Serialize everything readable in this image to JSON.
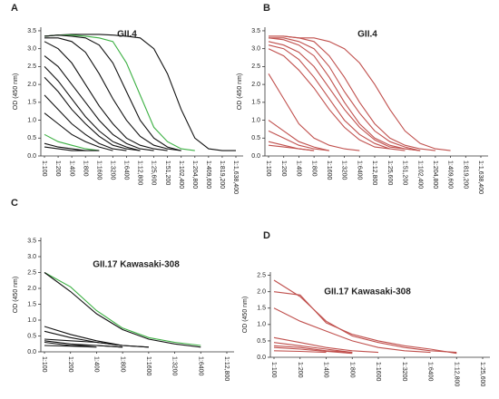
{
  "chart_data": [
    {
      "type": "line",
      "panel_label": "A",
      "title": "GII.4",
      "y_label": "OD (450 nm)",
      "categories": [
        "1:100",
        "1:200",
        "1:400",
        "1:800",
        "1:1600",
        "1:3200",
        "1:6400",
        "1:12,800",
        "1:25,600",
        "1:51,200",
        "1:102,400",
        "1:204,800",
        "1:409,600",
        "1:819,200",
        "1:1,638,400"
      ],
      "ylim": [
        0,
        3.6
      ],
      "yticks": [
        {
          "value": 0,
          "label": "0.0"
        },
        0.5,
        {
          "value": 1,
          "label": "1.0"
        },
        1.5,
        {
          "value": 2,
          "label": "2.0"
        },
        2.5,
        {
          "value": 3,
          "label": "3.0"
        },
        3.5
      ],
      "series": [
        {
          "color": "#111111",
          "values": [
            3.35,
            3.38,
            3.4,
            3.4,
            3.4,
            3.38,
            3.35,
            3.3,
            3.0,
            2.3,
            1.3,
            0.5,
            0.2,
            0.15,
            0.15
          ]
        },
        {
          "color": "#3cb043",
          "values": [
            3.35,
            3.38,
            3.38,
            3.35,
            3.3,
            3.2,
            2.6,
            1.7,
            0.8,
            0.4,
            0.2,
            0.15,
            null,
            null,
            null
          ]
        },
        {
          "color": "#111111",
          "values": [
            3.35,
            3.38,
            3.35,
            3.3,
            3.1,
            2.6,
            1.8,
            1.0,
            0.5,
            0.25,
            0.15,
            null,
            null,
            null,
            null
          ]
        },
        {
          "color": "#111111",
          "values": [
            3.3,
            3.3,
            3.2,
            2.9,
            2.3,
            1.6,
            1.0,
            0.55,
            0.3,
            0.2,
            0.15,
            null,
            null,
            null,
            null
          ]
        },
        {
          "color": "#111111",
          "values": [
            3.2,
            3.0,
            2.6,
            2.0,
            1.4,
            0.9,
            0.5,
            0.3,
            0.2,
            0.15,
            null,
            null,
            null,
            null,
            null
          ]
        },
        {
          "color": "#111111",
          "values": [
            2.8,
            2.5,
            2.0,
            1.5,
            1.0,
            0.6,
            0.35,
            0.2,
            0.15,
            null,
            null,
            null,
            null,
            null,
            null
          ]
        },
        {
          "color": "#111111",
          "values": [
            2.5,
            2.1,
            1.6,
            1.1,
            0.7,
            0.4,
            0.25,
            0.15,
            null,
            null,
            null,
            null,
            null,
            null,
            null
          ]
        },
        {
          "color": "#111111",
          "values": [
            2.2,
            1.8,
            1.3,
            0.9,
            0.55,
            0.3,
            0.2,
            0.15,
            null,
            null,
            null,
            null,
            null,
            null,
            null
          ]
        },
        {
          "color": "#111111",
          "values": [
            1.7,
            1.3,
            0.9,
            0.6,
            0.35,
            0.2,
            0.15,
            null,
            null,
            null,
            null,
            null,
            null,
            null,
            null
          ]
        },
        {
          "color": "#111111",
          "values": [
            1.2,
            0.9,
            0.6,
            0.4,
            0.25,
            0.15,
            null,
            null,
            null,
            null,
            null,
            null,
            null,
            null,
            null
          ]
        },
        {
          "color": "#3cb043",
          "values": [
            0.6,
            0.4,
            0.3,
            0.2,
            0.15,
            null,
            null,
            null,
            null,
            null,
            null,
            null,
            null,
            null,
            null
          ]
        },
        {
          "color": "#111111",
          "values": [
            0.35,
            0.25,
            0.2,
            0.15,
            0.15,
            null,
            null,
            null,
            null,
            null,
            null,
            null,
            null,
            null,
            null
          ]
        },
        {
          "color": "#111111",
          "values": [
            0.25,
            0.2,
            0.15,
            0.15,
            null,
            null,
            null,
            null,
            null,
            null,
            null,
            null,
            null,
            null,
            null
          ]
        }
      ]
    },
    {
      "type": "line",
      "panel_label": "B",
      "title": "GII.4",
      "y_label": "OD (450 nm)",
      "categories": [
        "1:100",
        "1:200",
        "1:400",
        "1:800",
        "1:1600",
        "1:3200",
        "1:6400",
        "1:12,800",
        "1:25,600",
        "1:51,200",
        "1:102,400",
        "1:204,800",
        "1:409,600",
        "1:819,200",
        "1:1,638,400"
      ],
      "ylim": [
        0,
        3.6
      ],
      "yticks": [
        {
          "value": 0,
          "label": "0.0"
        },
        0.5,
        {
          "value": 1,
          "label": "1.0"
        },
        1.5,
        {
          "value": 2,
          "label": "2.0"
        },
        2.5,
        {
          "value": 3,
          "label": "3.0"
        },
        3.5
      ],
      "series": [
        {
          "color": "#c0504d",
          "values": [
            3.35,
            3.35,
            3.3,
            3.2,
            2.8,
            2.2,
            1.5,
            0.9,
            0.5,
            0.3,
            0.2,
            0.15,
            null,
            null,
            null
          ]
        },
        {
          "color": "#c0504d",
          "values": [
            3.3,
            3.3,
            3.2,
            3.0,
            2.5,
            1.8,
            1.2,
            0.7,
            0.4,
            0.25,
            0.15,
            null,
            null,
            null,
            null
          ]
        },
        {
          "color": "#c0504d",
          "values": [
            3.3,
            3.25,
            3.1,
            2.8,
            2.2,
            1.5,
            0.9,
            0.5,
            0.3,
            0.2,
            0.15,
            null,
            null,
            null,
            null
          ]
        },
        {
          "color": "#c0504d",
          "values": [
            3.2,
            3.1,
            2.9,
            2.5,
            1.9,
            1.3,
            0.8,
            0.45,
            0.25,
            0.2,
            0.15,
            null,
            null,
            null,
            null
          ]
        },
        {
          "color": "#c0504d",
          "values": [
            3.1,
            3.0,
            2.7,
            2.2,
            1.6,
            1.0,
            0.6,
            0.35,
            0.2,
            0.15,
            null,
            null,
            null,
            null,
            null
          ]
        },
        {
          "color": "#c0504d",
          "values": [
            3.0,
            2.8,
            2.4,
            1.9,
            1.3,
            0.8,
            0.45,
            0.25,
            0.2,
            null,
            null,
            null,
            null,
            null,
            null
          ]
        },
        {
          "color": "#c0504d",
          "values": [
            3.35,
            3.35,
            3.3,
            3.3,
            3.2,
            3.0,
            2.6,
            2.0,
            1.3,
            0.7,
            0.35,
            0.2,
            0.15,
            null,
            null
          ]
        },
        {
          "color": "#c0504d",
          "values": [
            2.3,
            1.6,
            0.9,
            0.5,
            0.3,
            0.2,
            0.15,
            null,
            null,
            null,
            null,
            null,
            null,
            null,
            null
          ]
        },
        {
          "color": "#c0504d",
          "values": [
            1.0,
            0.7,
            0.4,
            0.25,
            0.15,
            null,
            null,
            null,
            null,
            null,
            null,
            null,
            null,
            null,
            null
          ]
        },
        {
          "color": "#c0504d",
          "values": [
            0.7,
            0.5,
            0.3,
            0.2,
            0.15,
            null,
            null,
            null,
            null,
            null,
            null,
            null,
            null,
            null,
            null
          ]
        },
        {
          "color": "#c0504d",
          "values": [
            0.4,
            0.3,
            0.2,
            0.15,
            null,
            null,
            null,
            null,
            null,
            null,
            null,
            null,
            null,
            null,
            null
          ]
        },
        {
          "color": "#c0504d",
          "values": [
            0.3,
            0.25,
            0.2,
            0.15,
            null,
            null,
            null,
            null,
            null,
            null,
            null,
            null,
            null,
            null,
            null
          ]
        }
      ]
    },
    {
      "type": "line",
      "panel_label": "C",
      "title": "GII.17 Kawasaki-308",
      "y_label": "OD (450 nm)",
      "categories": [
        "1:100",
        "1:200",
        "1:400",
        "1:800",
        "1:1600",
        "1:3200",
        "1:6400",
        "1:12,800"
      ],
      "ylim": [
        0,
        3.6
      ],
      "yticks": [
        {
          "value": 0,
          "label": "0.0"
        },
        0.5,
        {
          "value": 1,
          "label": "1.0"
        },
        1.5,
        {
          "value": 2,
          "label": "2.0"
        },
        2.5,
        {
          "value": 3,
          "label": "3.0"
        },
        3.5
      ],
      "series": [
        {
          "color": "#3cb043",
          "values": [
            2.5,
            2.05,
            1.3,
            0.75,
            0.45,
            0.3,
            0.2,
            null
          ]
        },
        {
          "color": "#111111",
          "values": [
            2.5,
            1.9,
            1.2,
            0.7,
            0.4,
            0.25,
            0.15,
            null
          ]
        },
        {
          "color": "#111111",
          "values": [
            0.8,
            0.55,
            0.35,
            0.2,
            0.15,
            null,
            null,
            null
          ]
        },
        {
          "color": "#111111",
          "values": [
            0.65,
            0.45,
            0.3,
            0.2,
            null,
            null,
            null,
            null
          ]
        },
        {
          "color": "#111111",
          "values": [
            0.4,
            0.35,
            0.3,
            0.2,
            0.15,
            null,
            null,
            null
          ]
        },
        {
          "color": "#111111",
          "values": [
            0.35,
            0.25,
            0.2,
            0.15,
            null,
            null,
            null,
            null
          ]
        },
        {
          "color": "#111111",
          "values": [
            0.3,
            0.2,
            0.2,
            0.15,
            null,
            null,
            null,
            null
          ]
        },
        {
          "color": "#111111",
          "values": [
            0.2,
            0.18,
            0.15,
            null,
            null,
            null,
            null,
            null
          ]
        }
      ]
    },
    {
      "type": "line",
      "panel_label": "D",
      "title": "GII.17 Kawasaki-308",
      "y_label": "OD (450 nm)",
      "categories": [
        "1:100",
        "1:200",
        "1:400",
        "1:800",
        "1:1600",
        "1:3200",
        "1:6400",
        "1:12,800",
        "1:25,600"
      ],
      "ylim": [
        0,
        2.6
      ],
      "yticks": [
        {
          "value": 0,
          "label": "0.0"
        },
        0.5,
        {
          "value": 1,
          "label": "1.0"
        },
        1.5,
        {
          "value": 2,
          "label": "2.0"
        },
        2.5
      ],
      "series": [
        {
          "color": "#c0504d",
          "values": [
            2.35,
            1.85,
            1.1,
            0.65,
            0.45,
            0.3,
            0.2,
            0.15,
            null
          ]
        },
        {
          "color": "#c0504d",
          "values": [
            2.0,
            1.9,
            1.05,
            0.7,
            0.5,
            0.35,
            0.25,
            0.12,
            null
          ]
        },
        {
          "color": "#c0504d",
          "values": [
            1.5,
            1.1,
            0.8,
            0.5,
            0.3,
            0.2,
            0.15,
            null,
            null
          ]
        },
        {
          "color": "#c0504d",
          "values": [
            0.6,
            0.45,
            0.3,
            0.2,
            0.15,
            null,
            null,
            null,
            null
          ]
        },
        {
          "color": "#c0504d",
          "values": [
            0.45,
            0.35,
            0.25,
            0.15,
            null,
            null,
            null,
            null,
            null
          ]
        },
        {
          "color": "#c0504d",
          "values": [
            0.35,
            0.3,
            0.2,
            0.15,
            null,
            null,
            null,
            null,
            null
          ]
        },
        {
          "color": "#c0504d",
          "values": [
            0.3,
            0.25,
            0.18,
            0.12,
            null,
            null,
            null,
            null,
            null
          ]
        },
        {
          "color": "#c0504d",
          "values": [
            0.2,
            0.18,
            0.15,
            null,
            null,
            null,
            null,
            null,
            null
          ]
        }
      ]
    }
  ]
}
